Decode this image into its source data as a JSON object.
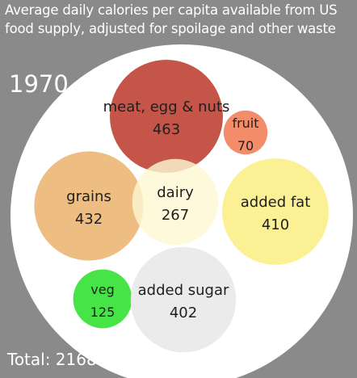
{
  "title_lines": [
    "Average daily calories per capita available from US",
    "food supply, adjusted for spoilage and other waste"
  ],
  "year": "1970",
  "total_text": "Total: 2168",
  "colors": {
    "background": "#8a8a8a",
    "outer_circle": "#ffffff"
  },
  "chart_data": {
    "type": "bubble",
    "title": "Average daily calories per capita available from US food supply, adjusted for spoilage and other waste",
    "year": "1970",
    "total": 2168,
    "series": [
      {
        "name": "meat, egg & nuts",
        "value": 463,
        "color": "#c0483a"
      },
      {
        "name": "fruit",
        "value": 70,
        "color": "#f2845e"
      },
      {
        "name": "grains",
        "value": 432,
        "color": "#ecb878"
      },
      {
        "name": "dairy",
        "value": 267,
        "color": "#fdf8d2"
      },
      {
        "name": "added fat",
        "value": 410,
        "color": "#fbf08c"
      },
      {
        "name": "veg",
        "value": 125,
        "color": "#38e238"
      },
      {
        "name": "added sugar",
        "value": 402,
        "color": "#eaeaea"
      }
    ]
  }
}
